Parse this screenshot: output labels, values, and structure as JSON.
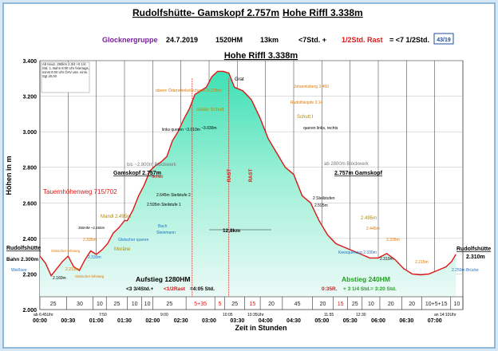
{
  "header": {
    "title_parts": [
      "Rudolfshütte- Gamskopf 2.757m",
      "Hohe Riffl 3.338m"
    ],
    "group": "Glocknergruppe",
    "date": "24.7.2019",
    "ascent": "1520HM",
    "distance": "13km",
    "time_a": "<7Std. +",
    "time_b": "1/2Std. Rast",
    "time_c": "= <7 1/2Std.",
    "page_badge": "43/19"
  },
  "chart_data": {
    "type": "area",
    "title": "Hohe Riffl 3.338m",
    "ylabel": "Höhen in m",
    "xlabel": "Zeit in Stunden",
    "ylim": [
      2000,
      3400
    ],
    "xlim": [
      0,
      15
    ],
    "xticks": [
      "00:00",
      "00:30",
      "01:00",
      "01:30",
      "02:00",
      "02:30",
      "03:00",
      "03:30",
      "04:00",
      "04:30",
      "05:00",
      "05:30",
      "06:00",
      "06:30",
      "07:00"
    ],
    "yticks": [
      "2.000",
      "2.200",
      "2.400",
      "2.600",
      "2.800",
      "3.000",
      "3.200",
      "3.400"
    ],
    "profile_x": [
      0,
      0.2,
      0.4,
      0.6,
      0.8,
      1.0,
      1.2,
      1.4,
      1.6,
      1.8,
      2.0,
      2.2,
      2.4,
      2.6,
      2.8,
      3.0,
      3.1,
      3.3,
      3.5,
      3.7,
      3.9,
      4.1,
      4.3,
      4.5,
      4.7,
      4.9,
      5.1,
      5.3,
      5.5,
      5.7,
      5.9,
      6.1,
      6.3,
      6.5,
      6.7,
      6.9,
      7.2,
      7.5,
      7.8,
      8.1,
      8.4,
      8.7,
      9.0,
      9.3,
      9.6,
      9.9,
      10.2,
      10.5,
      10.8,
      11.1,
      11.4,
      11.7,
      12.0,
      12.3,
      12.6,
      12.9,
      13.2,
      13.5,
      13.8,
      14.1,
      14.4,
      14.6,
      14.75
    ],
    "profile_y": [
      2300,
      2260,
      2190,
      2230,
      2270,
      2300,
      2240,
      2220,
      2280,
      2330,
      2310,
      2335,
      2370,
      2430,
      2460,
      2500,
      2500,
      2560,
      2640,
      2700,
      2780,
      2810,
      2830,
      2860,
      2950,
      3000,
      3070,
      3130,
      3210,
      3230,
      3250,
      3310,
      3340,
      3340,
      3330,
      3250,
      3230,
      3180,
      3080,
      2960,
      2880,
      2800,
      2760,
      2640,
      2600,
      2500,
      2420,
      2370,
      2350,
      2330,
      2310,
      2290,
      2290,
      2315,
      2280,
      2230,
      2200,
      2195,
      2200,
      2220,
      2240,
      2270,
      2310
    ],
    "rast_markers": [
      5.4,
      6.7
    ],
    "legend_bar": {
      "labels": [
        "25",
        "30",
        "10",
        "25",
        "10",
        "10",
        "25",
        "5+35",
        "5",
        "25",
        "15",
        "20",
        "45",
        "20",
        "15",
        "25",
        "10",
        "20",
        "20",
        "10+5+15",
        "10"
      ],
      "edges": [
        0,
        1.2,
        2.4,
        3.0,
        3.95,
        4.6,
        5.1,
        6.6,
        7.9,
        8.35,
        9.25,
        9.95,
        10.95,
        12.3,
        13.25,
        13.9,
        14.55,
        15.35,
        16.35,
        17.25,
        18.55,
        19.1
      ]
    },
    "annotations": {
      "rudolfshuette_left": "Rudolfshütte",
      "bahn_left": "Bahn 2.300m",
      "rudolfshuette_right": "Rudolfshütte",
      "height_right": "2.310m",
      "peak_label": "Grat",
      "gamskopf_left": "Gamskopf 2.757m",
      "gamskopf_right": "2.757m Gamskopf",
      "tauern": "Tauernhöhenweg 715/702",
      "aufstieg": "Aufstieg 1280HM",
      "aufstieg_sub_a": "<3 3/4Std.+",
      "aufstieg_sub_b": "<1/2Rast",
      "aufstieg_sub_c": "=4:05 Std.",
      "abstieg": "Abstieg 240HM",
      "abstieg_sub_a": "0:35R.",
      "abstieg_sub_b": "+ 3 1/4 Std.= 3:20 Std.",
      "distance_mid": "12,8km",
      "rast": "RAST",
      "glacier_l": "Gletscher lehrweg",
      "weg": "Weißsee",
      "right_bruecke": "2.250m Brücke",
      "steiler_schutt": "steiler Schutt",
      "schutt_r": "Schutt I",
      "bis_blockwerk": "bis ~2.800m Blockwerk",
      "ab_blockwerk": "ab 2800m Blockwerk",
      "stufe1": "2.595m Steilstufe 1",
      "stufe2": "2.645m Steilstufe 2",
      "linkerquer": "links queren ~3.010m",
      "querenlinks": "queren links, rechts",
      "johannisberg": "Johannisberg 3.460",
      "rudolfs_spitz": "Rudolfsköpfe 3.14",
      "odermann": "obere Ödenwinkelscharte 3.228m",
      "mandl": "Mandl 2.495m",
      "mandl_r": "2.495m",
      "moraene": "Moräne",
      "glet_queren": "Gletscher queren",
      "riffel": "2.330m",
      "kees": "Keesquerung 2.330m",
      "stufen2": "2 Steilstufen",
      "h2595": "2.595m",
      "h2310": "2.310m",
      "h2215": "2.215m",
      "h2335": "2.335m",
      "h2445": "2.445m",
      "h2160": "2.160m",
      "h2213": "2.213m",
      "h2230": "2.330m",
      "h2280": "2.280m",
      "s3030": "~3.030m",
      "sch": "Schutt",
      "steinm": "Steinmann",
      "l355": "355HM ~2.465m",
      "bach": "Bach",
      "note": "Ab Hauz. 250km 2.3/4 +0 1/4 Std. 1. Bahn 8:00 Uhr feiertags, sonst 9:00 Uhr ÖAV use. einm. Sgt 20,00",
      "start_time": "ab 6:45Uhr",
      "t750": "7:50",
      "t900": "9:00",
      "t1005": "10:05",
      "t1035": "10:35Uhr",
      "t1155": "11:55",
      "t1230": "12:30",
      "t1410": "an 14:10Uhr"
    }
  },
  "colors": {
    "fill_top": "#3de0b5",
    "fill_bottom": "#eef8f6",
    "line": "#e01515",
    "title_group": "#7a1fa0",
    "rast": "#e01515",
    "green": "#22a022",
    "orange": "#e07800",
    "teal": "#00a0a0"
  }
}
